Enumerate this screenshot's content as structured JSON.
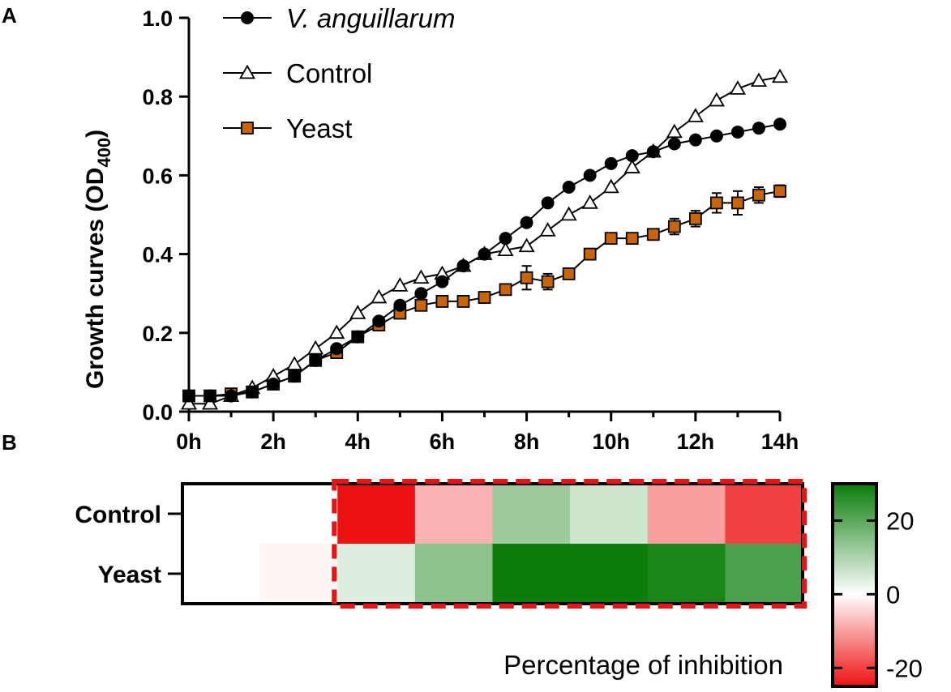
{
  "panel_a_label": "A",
  "panel_b_label": "B",
  "chart_data": [
    {
      "type": "line",
      "title": "",
      "xlabel": "",
      "ylabel": "Growth curves (OD",
      "ylabel_sub": "400",
      "ylabel_close": ")",
      "xlim": [
        0,
        14
      ],
      "ylim": [
        0,
        1.0
      ],
      "x_ticks": [
        0,
        2,
        4,
        6,
        8,
        10,
        12,
        14
      ],
      "x_tick_labels": [
        "0h",
        "2h",
        "4h",
        "6h",
        "8h",
        "10h",
        "12h",
        "14h"
      ],
      "y_ticks": [
        0,
        0.2,
        0.4,
        0.6,
        0.8,
        1.0
      ],
      "y_tick_labels": [
        "0.0",
        "0.2",
        "0.4",
        "0.6",
        "0.8",
        "1.0"
      ],
      "legend_position": "top-left",
      "x": [
        0,
        0.5,
        1,
        1.5,
        2,
        2.5,
        3,
        3.5,
        4,
        4.5,
        5,
        5.5,
        6,
        6.5,
        7,
        7.5,
        8,
        8.5,
        9,
        9.5,
        10,
        10.5,
        11,
        11.5,
        12,
        12.5,
        13,
        13.5,
        14
      ],
      "series": [
        {
          "name": "V. anguillarum",
          "italic": true,
          "marker": "circle",
          "color": "#000000",
          "fill": "#000000",
          "values": [
            0.04,
            0.04,
            0.04,
            0.05,
            0.07,
            0.09,
            0.13,
            0.16,
            0.19,
            0.23,
            0.27,
            0.3,
            0.33,
            0.37,
            0.4,
            0.44,
            0.48,
            0.53,
            0.57,
            0.6,
            0.63,
            0.65,
            0.66,
            0.68,
            0.69,
            0.7,
            0.71,
            0.72,
            0.73
          ],
          "errors": []
        },
        {
          "name": "Control",
          "italic": false,
          "marker": "triangle",
          "color": "#000000",
          "fill": "#ffffff",
          "values": [
            0.02,
            0.02,
            0.04,
            0.06,
            0.09,
            0.12,
            0.16,
            0.2,
            0.25,
            0.29,
            0.32,
            0.34,
            0.35,
            0.37,
            0.4,
            0.41,
            0.42,
            0.46,
            0.5,
            0.53,
            0.57,
            0.62,
            0.66,
            0.71,
            0.75,
            0.79,
            0.82,
            0.84,
            0.85
          ],
          "errors": []
        },
        {
          "name": "Yeast",
          "italic": false,
          "marker": "square",
          "color": "#000000",
          "fill": "#c8650a",
          "values": [
            0.04,
            0.04,
            0.045,
            0.05,
            0.07,
            0.09,
            0.13,
            0.15,
            0.19,
            0.22,
            0.25,
            0.27,
            0.28,
            0.28,
            0.29,
            0.31,
            0.34,
            0.33,
            0.35,
            0.4,
            0.44,
            0.44,
            0.45,
            0.47,
            0.49,
            0.53,
            0.53,
            0.55,
            0.56
          ],
          "errors": [
            0,
            0,
            0,
            0,
            0,
            0,
            0,
            0,
            0,
            0,
            0,
            0,
            0,
            0,
            0,
            0,
            0.03,
            0.02,
            0,
            0,
            0,
            0,
            0.01,
            0.02,
            0.02,
            0.025,
            0.03,
            0.02,
            0.015
          ]
        }
      ]
    },
    {
      "type": "heatmap",
      "title": "",
      "rows": [
        "Control",
        "Yeast"
      ],
      "columns": 8,
      "values": [
        [
          0,
          0,
          -25,
          -8,
          12,
          6,
          -10,
          -20
        ],
        [
          0,
          -1,
          4,
          14,
          30,
          30,
          28,
          22
        ]
      ],
      "highlight_from_column": 2,
      "highlight_color": "#ee1111",
      "colorbar": {
        "min": -25,
        "max": 30,
        "ticks": [
          20,
          0,
          -20
        ],
        "tick_labels": [
          "20",
          "0",
          "-20"
        ],
        "label": "Percentage of inhibition",
        "colors": {
          "negative": "#ee1111",
          "zero": "#ffffff",
          "positive": "#0a7d0a"
        }
      }
    }
  ]
}
